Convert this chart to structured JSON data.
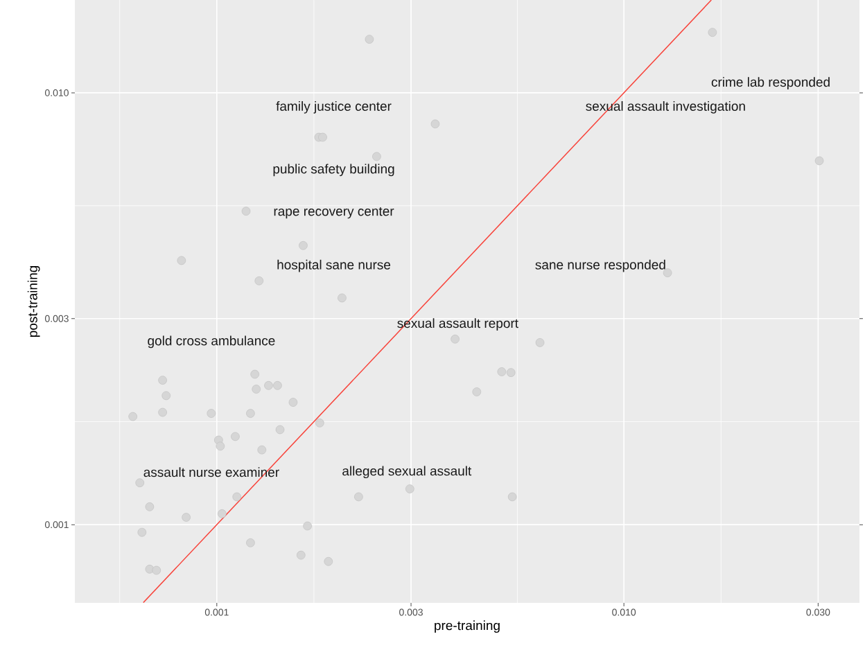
{
  "chart_data": {
    "type": "scatter",
    "xlabel": "pre-training",
    "ylabel": "post-training",
    "log": "xy",
    "grid": true,
    "marker": "circle",
    "xlim": [
      0.000448,
      0.0379
    ],
    "ylim": [
      0.000659,
      0.0164
    ],
    "xticks": [
      0.001,
      0.003,
      {
        "value": 0.01,
        "label": "0.010"
      },
      {
        "value": 0.03,
        "label": "0.030"
      }
    ],
    "yticks": [
      0.001,
      0.003,
      {
        "value": 0.01,
        "label": "0.010"
      }
    ],
    "series": [
      {
        "color": "#d6d6d6",
        "x": [
          0.00237,
          0.0165,
          0.00344,
          0.00178,
          0.00182,
          0.00247,
          0.0302,
          0.00118,
          0.00163,
          0.000819,
          0.00127,
          0.0128,
          0.00203,
          0.00385,
          0.00622,
          0.00501,
          0.00528,
          0.000736,
          0.00124,
          0.000751,
          0.00125,
          0.00134,
          0.00141,
          0.00154,
          0.00435,
          0.000622,
          0.000736,
          0.000969,
          0.00121,
          0.00179,
          0.00143,
          0.00111,
          0.00101,
          0.00102,
          0.00129,
          0.000647,
          0.00223,
          0.00298,
          0.00532,
          0.00112,
          0.000684,
          0.00103,
          0.000841,
          0.000655,
          0.00167,
          0.00121,
          0.00161,
          0.00188,
          0.000684,
          0.000711
        ],
        "values": [
          0.0133,
          0.0138,
          0.00847,
          0.00789,
          0.00789,
          0.00712,
          0.00696,
          0.00532,
          0.00443,
          0.00409,
          0.00367,
          0.00383,
          0.00335,
          0.00269,
          0.00264,
          0.00226,
          0.00225,
          0.00216,
          0.00223,
          0.00199,
          0.00206,
          0.0021,
          0.0021,
          0.00192,
          0.00203,
          0.00178,
          0.00182,
          0.00181,
          0.00181,
          0.00172,
          0.00166,
          0.0016,
          0.00157,
          0.00152,
          0.00149,
          0.00125,
          0.00116,
          0.00121,
          0.00116,
          0.00116,
          0.0011,
          0.00106,
          0.00104,
          0.00096,
          0.000993,
          0.000908,
          0.00085,
          0.000822,
          0.000789,
          0.000784
        ]
      },
      {
        "type": "line",
        "marker": "none",
        "color": "#f8433a",
        "x": [
          0.00066,
          0.0164
        ],
        "values": [
          0.00066,
          0.0164
        ]
      }
    ],
    "annotations": [
      "crime lab responded",
      "sexual assault investigation",
      "family justice center",
      "public safety building",
      "rape recovery center",
      "hospital sane nurse",
      "sane nurse responded",
      "gold cross ambulance",
      "sexual assault report",
      "assault nurse examiner",
      "alleged sexual assault"
    ]
  }
}
